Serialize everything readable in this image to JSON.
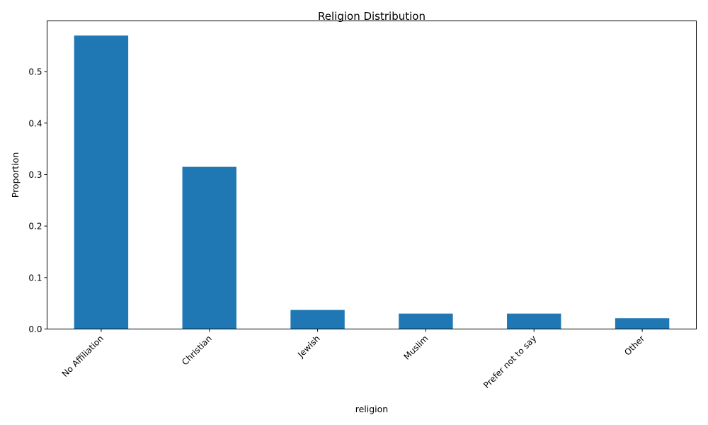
{
  "chart_data": {
    "type": "bar",
    "title": "Religion Distribution",
    "xlabel": "religion",
    "ylabel": "Proportion",
    "categories": [
      "No Affiliation",
      "Christian",
      "Jewish",
      "Muslim",
      "Prefer not to say",
      "Other"
    ],
    "values": [
      0.57,
      0.315,
      0.037,
      0.03,
      0.03,
      0.021
    ],
    "ylim": [
      0,
      0.5985
    ],
    "yticks": [
      "0.0",
      "0.1",
      "0.2",
      "0.3",
      "0.4",
      "0.5"
    ],
    "grid": false,
    "legend": "none",
    "bar_color": "#1f77b4"
  }
}
